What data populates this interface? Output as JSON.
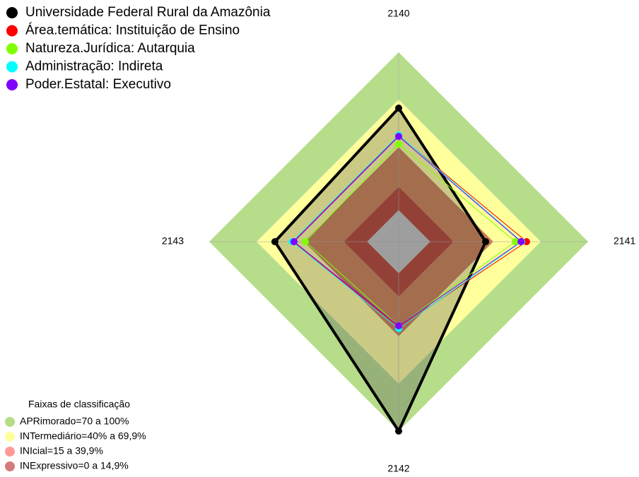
{
  "chart_data": {
    "type": "radar",
    "categories": [
      "2140",
      "2141",
      "2142",
      "2143"
    ],
    "ylim": [
      -20,
      100
    ],
    "series": [
      {
        "name": "Universidade Federal Rural da Amazônia",
        "color": "#000000",
        "values": [
          64.6,
          35.1,
          100,
          58.4
        ]
      },
      {
        "name": "Área.temática: Instituição de Ensino",
        "color": "#ff0000",
        "values": [
          47.2,
          61,
          34.2,
          46.7
        ]
      },
      {
        "name": "Natureza.Jurídica: Autarquia",
        "color": "#7fff00",
        "values": [
          41.8,
          53.9,
          33.3,
          39.1
        ]
      },
      {
        "name": "Administração: Indireta",
        "color": "#00ffff",
        "values": [
          47.6,
          57.9,
          35.1,
          47.6
        ]
      },
      {
        "name": "Poder.Estatal: Executivo",
        "color": "#8000ff",
        "values": [
          46.7,
          57.5,
          33.3,
          46.3
        ]
      }
    ],
    "bands_title": "Faixas de classificação",
    "bands": [
      {
        "name": "APRimorado=70 a 100%",
        "color": "#b6dd8a",
        "from": 70,
        "to": 100
      },
      {
        "name": "INTermediário=40% a 69,9%",
        "color": "#ffff9c",
        "from": 40,
        "to": 69.9
      },
      {
        "name": "INIcial=15 a 39,9%",
        "color": "#c87a4e",
        "from": 15,
        "to": 39.9
      },
      {
        "name": "INExpressivo=0 a 14,9%",
        "color": "#b03c2c",
        "from": 0,
        "to": 14.9
      }
    ],
    "legend_colors_bands": [
      "#b6dd8a",
      "#ffff9c",
      "#ff9a9a",
      "#d47a7a"
    ]
  }
}
